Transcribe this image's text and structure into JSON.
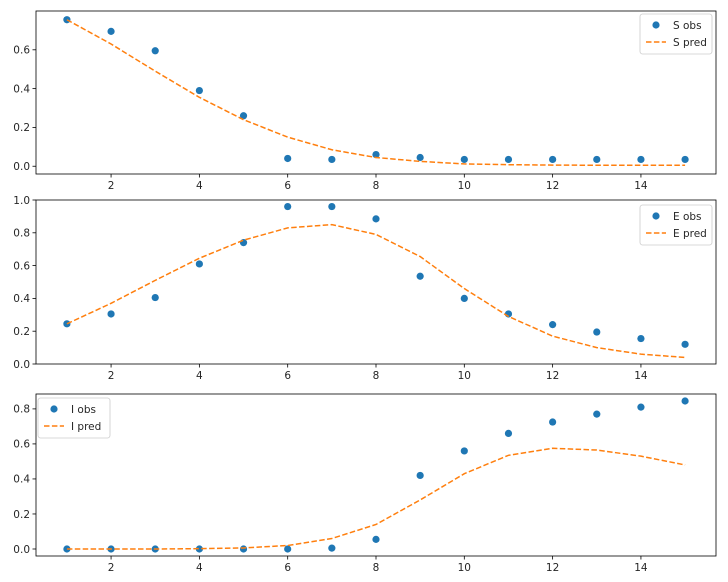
{
  "chart_data": [
    {
      "type": "scatter",
      "title": "",
      "xlabel": "",
      "ylabel": "",
      "xlim": [
        0.3,
        15.7
      ],
      "ylim": [
        -0.04,
        0.8
      ],
      "xticks": [
        2,
        4,
        6,
        8,
        10,
        12,
        14
      ],
      "yticks": [
        0.0,
        0.2,
        0.4,
        0.6
      ],
      "grid": false,
      "legend_position": "top-right",
      "x": [
        1,
        2,
        3,
        4,
        5,
        6,
        7,
        8,
        9,
        10,
        11,
        12,
        13,
        14,
        15
      ],
      "series": [
        {
          "name": "S obs",
          "style": "markers",
          "color": "#1f77b4",
          "values": [
            0.755,
            0.695,
            0.595,
            0.39,
            0.26,
            0.04,
            0.035,
            0.06,
            0.045,
            0.035,
            0.035,
            0.035,
            0.035,
            0.035,
            0.035
          ]
        },
        {
          "name": "S pred",
          "style": "dashed",
          "color": "#ff7f0e",
          "values": [
            0.755,
            0.63,
            0.49,
            0.355,
            0.24,
            0.15,
            0.085,
            0.045,
            0.025,
            0.012,
            0.008,
            0.006,
            0.005,
            0.005,
            0.005
          ]
        }
      ]
    },
    {
      "type": "scatter",
      "title": "",
      "xlabel": "",
      "ylabel": "",
      "xlim": [
        0.3,
        15.7
      ],
      "ylim": [
        0.0,
        1.0
      ],
      "xticks": [
        2,
        4,
        6,
        8,
        10,
        12,
        14
      ],
      "yticks": [
        0.0,
        0.2,
        0.4,
        0.6,
        0.8,
        1.0
      ],
      "grid": false,
      "legend_position": "top-right",
      "x": [
        1,
        2,
        3,
        4,
        5,
        6,
        7,
        8,
        9,
        10,
        11,
        12,
        13,
        14,
        15
      ],
      "series": [
        {
          "name": "E obs",
          "style": "markers",
          "color": "#1f77b4",
          "values": [
            0.245,
            0.305,
            0.405,
            0.61,
            0.74,
            0.96,
            0.96,
            0.885,
            0.535,
            0.4,
            0.305,
            0.24,
            0.195,
            0.155,
            0.12
          ]
        },
        {
          "name": "E pred",
          "style": "dashed",
          "color": "#ff7f0e",
          "values": [
            0.245,
            0.37,
            0.51,
            0.645,
            0.755,
            0.83,
            0.85,
            0.79,
            0.655,
            0.46,
            0.29,
            0.17,
            0.1,
            0.06,
            0.04
          ]
        }
      ]
    },
    {
      "type": "scatter",
      "title": "",
      "xlabel": "",
      "ylabel": "",
      "xlim": [
        0.3,
        15.7
      ],
      "ylim": [
        -0.04,
        0.885
      ],
      "xticks": [
        2,
        4,
        6,
        8,
        10,
        12,
        14
      ],
      "yticks": [
        0.0,
        0.2,
        0.4,
        0.6,
        0.8
      ],
      "grid": false,
      "legend_position": "top-left",
      "x": [
        1,
        2,
        3,
        4,
        5,
        6,
        7,
        8,
        9,
        10,
        11,
        12,
        13,
        14,
        15
      ],
      "series": [
        {
          "name": "I obs",
          "style": "markers",
          "color": "#1f77b4",
          "values": [
            0.0,
            0.0,
            0.0,
            0.0,
            0.0,
            0.0,
            0.005,
            0.055,
            0.42,
            0.56,
            0.66,
            0.725,
            0.77,
            0.81,
            0.845
          ]
        },
        {
          "name": "I pred",
          "style": "dashed",
          "color": "#ff7f0e",
          "values": [
            0.0,
            0.0,
            0.0,
            0.002,
            0.006,
            0.02,
            0.06,
            0.14,
            0.28,
            0.43,
            0.535,
            0.575,
            0.565,
            0.53,
            0.48
          ]
        }
      ]
    }
  ]
}
